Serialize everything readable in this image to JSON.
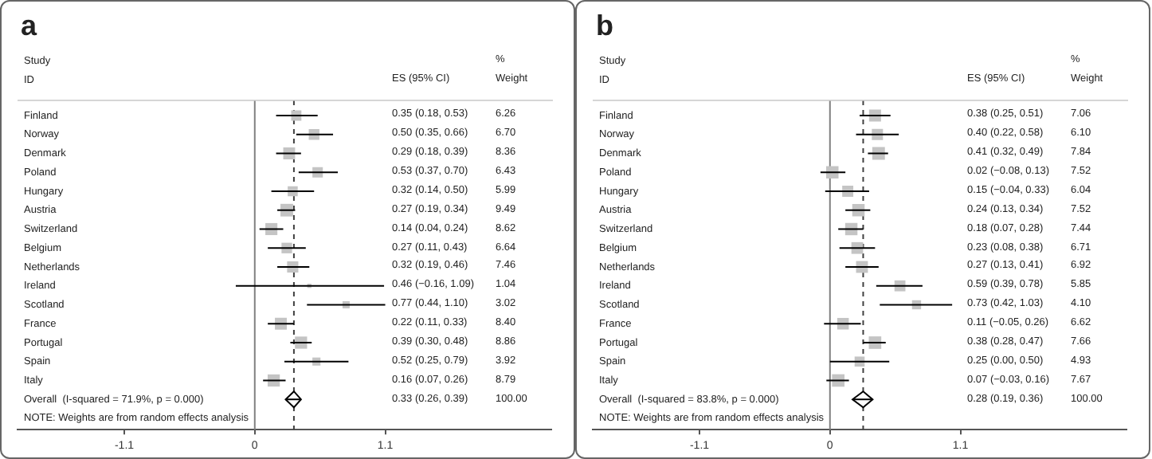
{
  "chart_data": [
    {
      "type": "bubble",
      "title": "a",
      "orientation": "horizontal",
      "categories": [
        "Finland",
        "Norway",
        "Denmark",
        "Poland",
        "Hungary",
        "Austria",
        "Switzerland",
        "Belgium",
        "Netherlands",
        "Ireland",
        "Scotland",
        "France",
        "Portugal",
        "Spain",
        "Italy",
        "Overall  (I-squared = 71.9%, p = 0.000)"
      ],
      "series": [
        {
          "color": "#c4c4c4",
          "marker": "square",
          "values": [
            0.35,
            0.5,
            0.29,
            0.53,
            0.32,
            0.27,
            0.14,
            0.27,
            0.32,
            0.46,
            0.77,
            0.22,
            0.39,
            0.52,
            0.16,
            null
          ],
          "errors": [
            [
              0.18,
              0.53
            ],
            [
              0.35,
              0.66
            ],
            [
              0.18,
              0.39
            ],
            [
              0.37,
              0.7
            ],
            [
              0.14,
              0.5
            ],
            [
              0.19,
              0.34
            ],
            [
              0.04,
              0.24
            ],
            [
              0.11,
              0.43
            ],
            [
              0.19,
              0.46
            ],
            [
              -0.16,
              1.09
            ],
            [
              0.44,
              1.1
            ],
            [
              0.11,
              0.33
            ],
            [
              0.3,
              0.48
            ],
            [
              0.25,
              0.79
            ],
            [
              0.07,
              0.26
            ],
            null
          ],
          "sizes": [
            0.66,
            0.71,
            0.88,
            0.68,
            0.63,
            1,
            0.91,
            0.7,
            0.79,
            0.11,
            0.32,
            0.89,
            0.93,
            0.41,
            0.93,
            null
          ]
        },
        {
          "type": "scatter",
          "color": "#000000",
          "marker": "diamond",
          "values": [
            null,
            null,
            null,
            null,
            null,
            null,
            null,
            null,
            null,
            null,
            null,
            null,
            null,
            null,
            null,
            0.33
          ],
          "errors": [
            null,
            null,
            null,
            null,
            null,
            null,
            null,
            null,
            null,
            null,
            null,
            null,
            null,
            null,
            null,
            [
              0.26,
              0.39
            ]
          ]
        }
      ],
      "xlim": [
        -2,
        2.5
      ],
      "xticks": [
        -1.1,
        0,
        1.1
      ],
      "ref_lines": [
        {
          "axis": "x",
          "value": 0,
          "color": "#808080",
          "line_style": "solid"
        },
        {
          "axis": "x",
          "value": 0.33,
          "color": "#404040",
          "line_style": "dashed"
        }
      ],
      "annotations": [
        "Study",
        "ID",
        "NOTE: Weights are from random effects analysis"
      ]
    },
    {
      "type": "other",
      "annotations": [
        "ES (95% CI)",
        "%",
        "Weight",
        "0.35 (0.18, 0.53)",
        "6.26",
        "0.50 (0.35, 0.66)",
        "6.70",
        "0.29 (0.18, 0.39)",
        "8.36",
        "0.53 (0.37, 0.70)",
        "6.43",
        "0.32 (0.14, 0.50)",
        "5.99",
        "0.27 (0.19, 0.34)",
        "9.49",
        "0.14 (0.04, 0.24)",
        "8.62",
        "0.27 (0.11, 0.43)",
        "6.64",
        "0.32 (0.19, 0.46)",
        "7.46",
        "0.46 (−0.16, 1.09)",
        "1.04",
        "0.77 (0.44, 1.10)",
        "3.02",
        "0.22 (0.11, 0.33)",
        "8.40",
        "0.39 (0.30, 0.48)",
        "8.86",
        "0.52 (0.25, 0.79)",
        "3.92",
        "0.16 (0.07, 0.26)",
        "8.79",
        "0.33 (0.26, 0.39)",
        "100.00"
      ]
    },
    {
      "type": "bubble",
      "title": "b",
      "orientation": "horizontal",
      "categories": [
        "Finland",
        "Norway",
        "Denmark",
        "Poland",
        "Hungary",
        "Austria",
        "Switzerland",
        "Belgium",
        "Netherlands",
        "Ireland",
        "Scotland",
        "France",
        "Portugal",
        "Spain",
        "Italy",
        "Overall  (I-squared = 83.8%, p = 0.000)"
      ],
      "series": [
        {
          "color": "#c4c4c4",
          "marker": "square",
          "values": [
            0.38,
            0.4,
            0.41,
            0.02,
            0.15,
            0.24,
            0.18,
            0.23,
            0.27,
            0.59,
            0.73,
            0.11,
            0.38,
            0.25,
            0.07,
            null
          ],
          "errors": [
            [
              0.25,
              0.51
            ],
            [
              0.22,
              0.58
            ],
            [
              0.32,
              0.49
            ],
            [
              -0.08,
              0.13
            ],
            [
              -0.04,
              0.33
            ],
            [
              0.13,
              0.34
            ],
            [
              0.07,
              0.28
            ],
            [
              0.08,
              0.38
            ],
            [
              0.13,
              0.41
            ],
            [
              0.39,
              0.78
            ],
            [
              0.42,
              1.03
            ],
            [
              -0.05,
              0.26
            ],
            [
              0.28,
              0.47
            ],
            [
              0.0,
              0.5
            ],
            [
              -0.03,
              0.16
            ],
            null
          ],
          "sizes": [
            0.9,
            0.78,
            1,
            0.96,
            0.77,
            0.96,
            0.95,
            0.86,
            0.88,
            0.75,
            0.52,
            0.84,
            0.98,
            0.63,
            0.98,
            null
          ]
        },
        {
          "type": "scatter",
          "color": "#000000",
          "marker": "diamond",
          "values": [
            null,
            null,
            null,
            null,
            null,
            null,
            null,
            null,
            null,
            null,
            null,
            null,
            null,
            null,
            null,
            0.28
          ],
          "errors": [
            null,
            null,
            null,
            null,
            null,
            null,
            null,
            null,
            null,
            null,
            null,
            null,
            null,
            null,
            null,
            [
              0.19,
              0.36
            ]
          ]
        }
      ],
      "xlim": [
        -2,
        2.5
      ],
      "xticks": [
        -1.1,
        0,
        1.1
      ],
      "ref_lines": [
        {
          "axis": "x",
          "value": 0,
          "color": "#808080",
          "line_style": "solid"
        },
        {
          "axis": "x",
          "value": 0.28,
          "color": "#404040",
          "line_style": "dashed"
        }
      ],
      "annotations": [
        "Study",
        "ID",
        "NOTE: Weights are from random effects analysis"
      ]
    },
    {
      "type": "other",
      "annotations": [
        "ES (95% CI)",
        "%",
        "Weight",
        "0.38 (0.25, 0.51)",
        "7.06",
        "0.40 (0.22, 0.58)",
        "6.10",
        "0.41 (0.32, 0.49)",
        "7.84",
        "0.02 (−0.08, 0.13)",
        "7.52",
        "0.15 (−0.04, 0.33)",
        "6.04",
        "0.24 (0.13, 0.34)",
        "7.52",
        "0.18 (0.07, 0.28)",
        "7.44",
        "0.23 (0.08, 0.38)",
        "6.71",
        "0.27 (0.13, 0.41)",
        "6.92",
        "0.59 (0.39, 0.78)",
        "5.85",
        "0.73 (0.42, 1.03)",
        "4.10",
        "0.11 (−0.05, 0.26)",
        "6.62",
        "0.38 (0.28, 0.47)",
        "7.66",
        "0.25 (0.00, 0.50)",
        "4.93",
        "0.07 (−0.03, 0.16)",
        "7.67",
        "0.28 (0.19, 0.36)",
        "100.00"
      ]
    }
  ]
}
